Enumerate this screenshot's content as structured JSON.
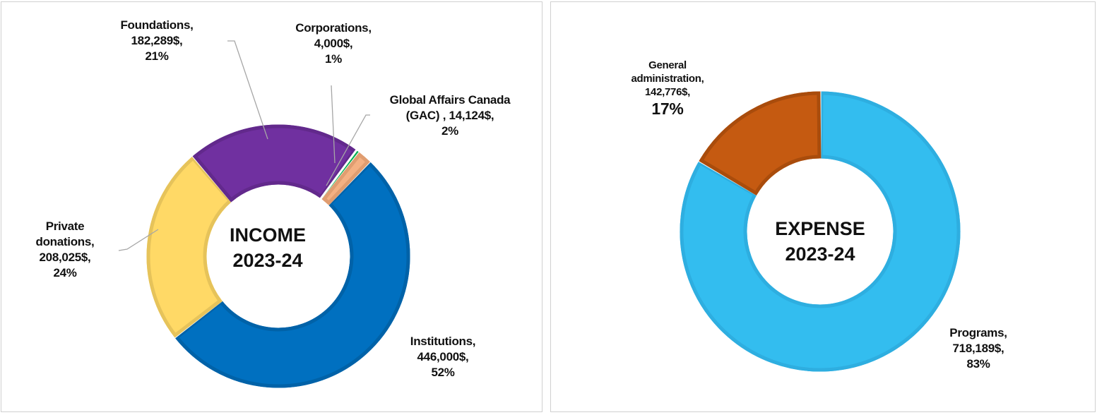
{
  "chart_data": [
    {
      "type": "donut",
      "title": "INCOME",
      "subtitle": "2023-24",
      "categories": [
        "Institutions",
        "Private donations",
        "Foundations",
        "Corporations",
        "Global Affairs Canada (GAC)"
      ],
      "values": [
        446000,
        208025,
        182289,
        4000,
        14124
      ],
      "percents": [
        "52%",
        "24%",
        "21%",
        "1%",
        "2%"
      ],
      "value_labels": [
        "446,000$,",
        "208,025$,",
        "182,289$,",
        "4,000$,",
        "14,124$,"
      ],
      "label_lines": [
        [
          "Institutions,",
          "446,000$,",
          "52%"
        ],
        [
          "Private",
          "donations,",
          "208,025$,",
          "24%"
        ],
        [
          "Foundations,",
          "182,289$,",
          "21%"
        ],
        [
          "Corporations,",
          "4,000$,",
          "1%"
        ],
        [
          "Global Affairs Canada",
          "(GAC) , 14,124$,",
          "2%"
        ]
      ],
      "colors": [
        "#0070C0",
        "#FFD966",
        "#7030A0",
        "#00B050",
        "#F4B183"
      ],
      "border_colors": [
        "#0062a8",
        "#e6c35a",
        "#62298c",
        "#009a45",
        "#e09d70"
      ],
      "first_slice_angle_deg": 44
    },
    {
      "type": "donut",
      "title": "EXPENSE",
      "subtitle": "2023-24",
      "categories": [
        "Programs",
        "General administration"
      ],
      "values": [
        718189,
        142776
      ],
      "percents": [
        "83%",
        "17%"
      ],
      "label_lines": [
        [
          "Programs,",
          "718,189$,",
          "83%"
        ],
        [
          "General",
          "administration,",
          "142,776$,",
          "17%"
        ]
      ],
      "colors": [
        "#33BDEF",
        "#C55A11"
      ],
      "border_colors": [
        "#2eaee0",
        "#a94c0c"
      ],
      "first_slice_angle_deg": 0
    }
  ]
}
